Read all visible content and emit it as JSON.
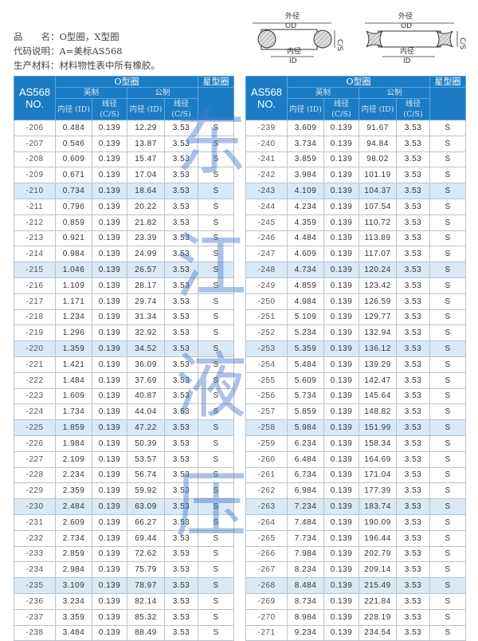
{
  "info": {
    "line1": "品　　名：O型圈，X型圈",
    "line2": "代码说明：A=美标AS568",
    "line3": "生产材料：材料物性表中所有橡胶。"
  },
  "diagram": {
    "od_cn": "外径",
    "od": "OD",
    "id_cn": "内径",
    "id": "ID",
    "cs_cn": "线径",
    "cs": "C/S"
  },
  "header": {
    "no": "AS568 NO.",
    "oring": "O型圈",
    "xring": "星型圈",
    "imperial": "英制",
    "metric": "公制",
    "id": "内径 (ID)",
    "cs": "线径(C/S)"
  },
  "watermark": [
    "东",
    "江",
    "液",
    "压"
  ],
  "left_rows": [
    [
      "-206",
      "0.484",
      "0.139",
      "12.29",
      "3.53",
      "S"
    ],
    [
      "-207",
      "0.546",
      "0.139",
      "13.87",
      "3.53",
      "S"
    ],
    [
      "-208",
      "0.609",
      "0.139",
      "15.47",
      "3.53",
      "S"
    ],
    [
      "-209",
      "0.671",
      "0.139",
      "17.04",
      "3.53",
      "S"
    ],
    [
      "-210",
      "0.734",
      "0.139",
      "18.64",
      "3.53",
      "S"
    ],
    [
      "-211",
      "0.796",
      "0.139",
      "20.22",
      "3.53",
      "S"
    ],
    [
      "-212",
      "0.859",
      "0.139",
      "21.82",
      "3.53",
      "S"
    ],
    [
      "-213",
      "0.921",
      "0.139",
      "23.39",
      "3.53",
      "S"
    ],
    [
      "-214",
      "0.984",
      "0.139",
      "24.99",
      "3.53",
      "S"
    ],
    [
      "-215",
      "1.046",
      "0.139",
      "26.57",
      "3.53",
      "S"
    ],
    [
      "-216",
      "1.109",
      "0.139",
      "28.17",
      "3.53",
      "S"
    ],
    [
      "-217",
      "1.171",
      "0.139",
      "29.74",
      "3.53",
      "S"
    ],
    [
      "-218",
      "1.234",
      "0.139",
      "31.34",
      "3.53",
      "S"
    ],
    [
      "-219",
      "1.296",
      "0.139",
      "32.92",
      "3.53",
      "S"
    ],
    [
      "-220",
      "1.359",
      "0.139",
      "34.52",
      "3.53",
      "S"
    ],
    [
      "-221",
      "1.421",
      "0.139",
      "36.09",
      "3.53",
      "S"
    ],
    [
      "-222",
      "1.484",
      "0.139",
      "37.69",
      "3.53",
      "S"
    ],
    [
      "-223",
      "1.609",
      "0.139",
      "40.87",
      "3.53",
      "S"
    ],
    [
      "-224",
      "1.734",
      "0.139",
      "44.04",
      "3.53",
      "S"
    ],
    [
      "-225",
      "1.859",
      "0.139",
      "47.22",
      "3.53",
      "S"
    ],
    [
      "-226",
      "1.984",
      "0.139",
      "50.39",
      "3.53",
      "S"
    ],
    [
      "-227",
      "2.109",
      "0.139",
      "53.57",
      "3.53",
      "S"
    ],
    [
      "-228",
      "2.234",
      "0.139",
      "56.74",
      "3.53",
      "S"
    ],
    [
      "-229",
      "2.359",
      "0.139",
      "59.92",
      "3.53",
      "S"
    ],
    [
      "-230",
      "2.484",
      "0.139",
      "63.09",
      "3.53",
      "S"
    ],
    [
      "-231",
      "2.609",
      "0.139",
      "66.27",
      "3.53",
      "S"
    ],
    [
      "-232",
      "2.734",
      "0.139",
      "69.44",
      "3.53",
      "S"
    ],
    [
      "-233",
      "2.859",
      "0.139",
      "72.62",
      "3.53",
      "S"
    ],
    [
      "-234",
      "2.984",
      "0.139",
      "75.79",
      "3.53",
      "S"
    ],
    [
      "-235",
      "3.109",
      "0.139",
      "78.97",
      "3.53",
      "S"
    ],
    [
      "-236",
      "3.234",
      "0.139",
      "82.14",
      "3.53",
      "S"
    ],
    [
      "-237",
      "3.359",
      "0.139",
      "85.32",
      "3.53",
      "S"
    ],
    [
      "-238",
      "3.484",
      "0.139",
      "88.49",
      "3.53",
      "S"
    ]
  ],
  "right_rows": [
    [
      "-239",
      "3.609",
      "0.139",
      "91.67",
      "3.53",
      "S"
    ],
    [
      "-240",
      "3.734",
      "0.139",
      "94.84",
      "3.53",
      "S"
    ],
    [
      "-241",
      "3.859",
      "0.139",
      "98.02",
      "3.53",
      "S"
    ],
    [
      "-242",
      "3.984",
      "0.139",
      "101.19",
      "3.53",
      "S"
    ],
    [
      "-243",
      "4.109",
      "0.139",
      "104.37",
      "3.53",
      "S"
    ],
    [
      "-244",
      "4.234",
      "0.139",
      "107.54",
      "3.53",
      "S"
    ],
    [
      "-245",
      "4.359",
      "0.139",
      "110.72",
      "3.53",
      "S"
    ],
    [
      "-246",
      "4.484",
      "0.139",
      "113.89",
      "3.53",
      "S"
    ],
    [
      "-247",
      "4.609",
      "0.139",
      "117.07",
      "3.53",
      "S"
    ],
    [
      "-248",
      "4.734",
      "0.139",
      "120.24",
      "3.53",
      "S"
    ],
    [
      "-249",
      "4.859",
      "0.139",
      "123.42",
      "3.53",
      "S"
    ],
    [
      "-250",
      "4.984",
      "0.139",
      "126.59",
      "3.53",
      "S"
    ],
    [
      "-251",
      "5.109",
      "0.139",
      "129.77",
      "3.53",
      "S"
    ],
    [
      "-252",
      "5.234",
      "0.139",
      "132.94",
      "3.53",
      "S"
    ],
    [
      "-253",
      "5.359",
      "0.139",
      "136.12",
      "3.53",
      "S"
    ],
    [
      "-254",
      "5.484",
      "0.139",
      "139.29",
      "3.53",
      "S"
    ],
    [
      "-255",
      "5.609",
      "0.139",
      "142.47",
      "3.53",
      "S"
    ],
    [
      "-256",
      "5.734",
      "0.139",
      "145.64",
      "3.53",
      "S"
    ],
    [
      "-257",
      "5.859",
      "0.139",
      "148.82",
      "3.53",
      "S"
    ],
    [
      "-258",
      "5.984",
      "0.139",
      "151.99",
      "3.53",
      "S"
    ],
    [
      "-259",
      "6.234",
      "0.139",
      "158.34",
      "3.53",
      "S"
    ],
    [
      "-260",
      "6.484",
      "0.139",
      "164.69",
      "3.53",
      "S"
    ],
    [
      "-261",
      "6.734",
      "0.139",
      "171.04",
      "3.53",
      "S"
    ],
    [
      "-262",
      "6.984",
      "0.139",
      "177.39",
      "3.53",
      "S"
    ],
    [
      "-263",
      "7.234",
      "0.139",
      "183.74",
      "3.53",
      "S"
    ],
    [
      "-264",
      "7.484",
      "0.139",
      "190.09",
      "3.53",
      "S"
    ],
    [
      "-265",
      "7.734",
      "0.139",
      "196.44",
      "3.53",
      "S"
    ],
    [
      "-266",
      "7.984",
      "0.139",
      "202.79",
      "3.53",
      "S"
    ],
    [
      "-267",
      "8.234",
      "0.139",
      "209.14",
      "3.53",
      "S"
    ],
    [
      "-268",
      "8.484",
      "0.139",
      "215.49",
      "3.53",
      "S"
    ],
    [
      "-269",
      "8.734",
      "0.139",
      "221.84",
      "3.53",
      "S"
    ],
    [
      "-270",
      "8.984",
      "0.139",
      "228.19",
      "3.53",
      "S"
    ],
    [
      "-271",
      "9.234",
      "0.139",
      "234.54",
      "3.53",
      "S"
    ]
  ],
  "highlight_color": "#d9e9f6",
  "header_color": "#1b7cc4"
}
